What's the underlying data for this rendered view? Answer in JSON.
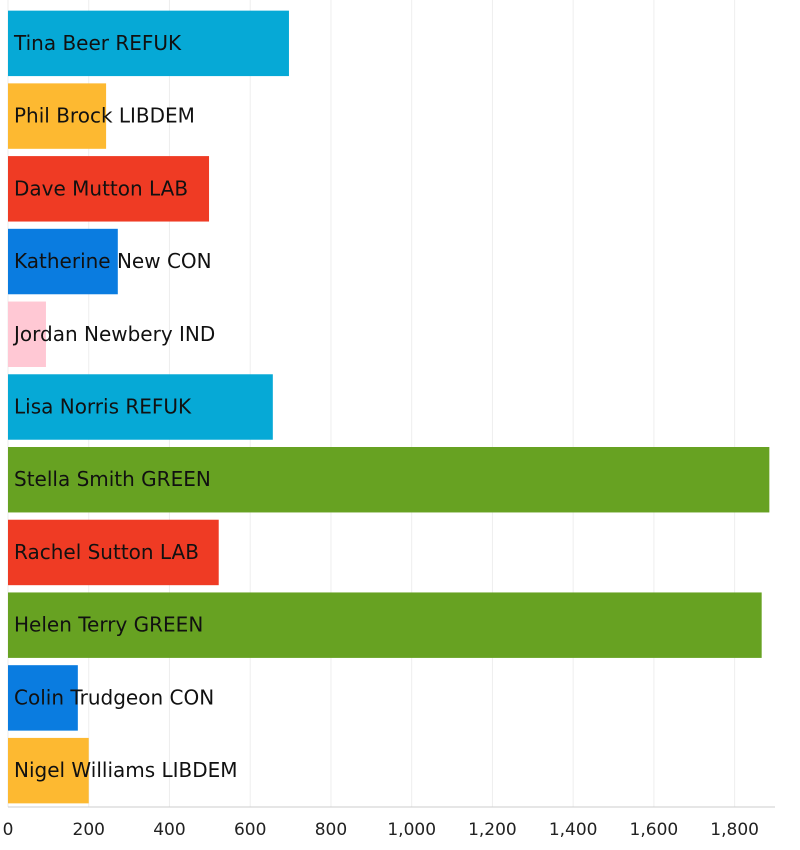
{
  "chart_data": {
    "type": "bar",
    "orientation": "horizontal",
    "categories": [
      "Tina Beer REFUK",
      "Phil Brock LIBDEM",
      "Dave Mutton LAB",
      "Katherine New CON",
      "Jordan Newbery IND",
      "Lisa Norris REFUK",
      "Stella Smith GREEN",
      "Rachel Sutton LAB",
      "Helen Terry GREEN",
      "Colin Trudgeon CON",
      "Nigel Williams LIBDEM"
    ],
    "values": [
      696,
      243,
      498,
      272,
      94,
      656,
      1886,
      522,
      1867,
      173,
      200
    ],
    "colors": [
      "#06a9d6",
      "#fdb931",
      "#ef3b24",
      "#0a7ce0",
      "#ffc8d4",
      "#06a9d6",
      "#67a222",
      "#ef3b24",
      "#67a222",
      "#0a7ce0",
      "#fdb931"
    ],
    "xlim": [
      0,
      1900
    ],
    "xticks": [
      0,
      200,
      400,
      600,
      800,
      {
        "value": 1000,
        "label": "1,000"
      },
      {
        "value": 1200,
        "label": "1,200"
      },
      {
        "value": 1400,
        "label": "1,400"
      },
      {
        "value": 1600,
        "label": "1,600"
      },
      {
        "value": 1800,
        "label": "1,800"
      }
    ],
    "grid": true
  }
}
